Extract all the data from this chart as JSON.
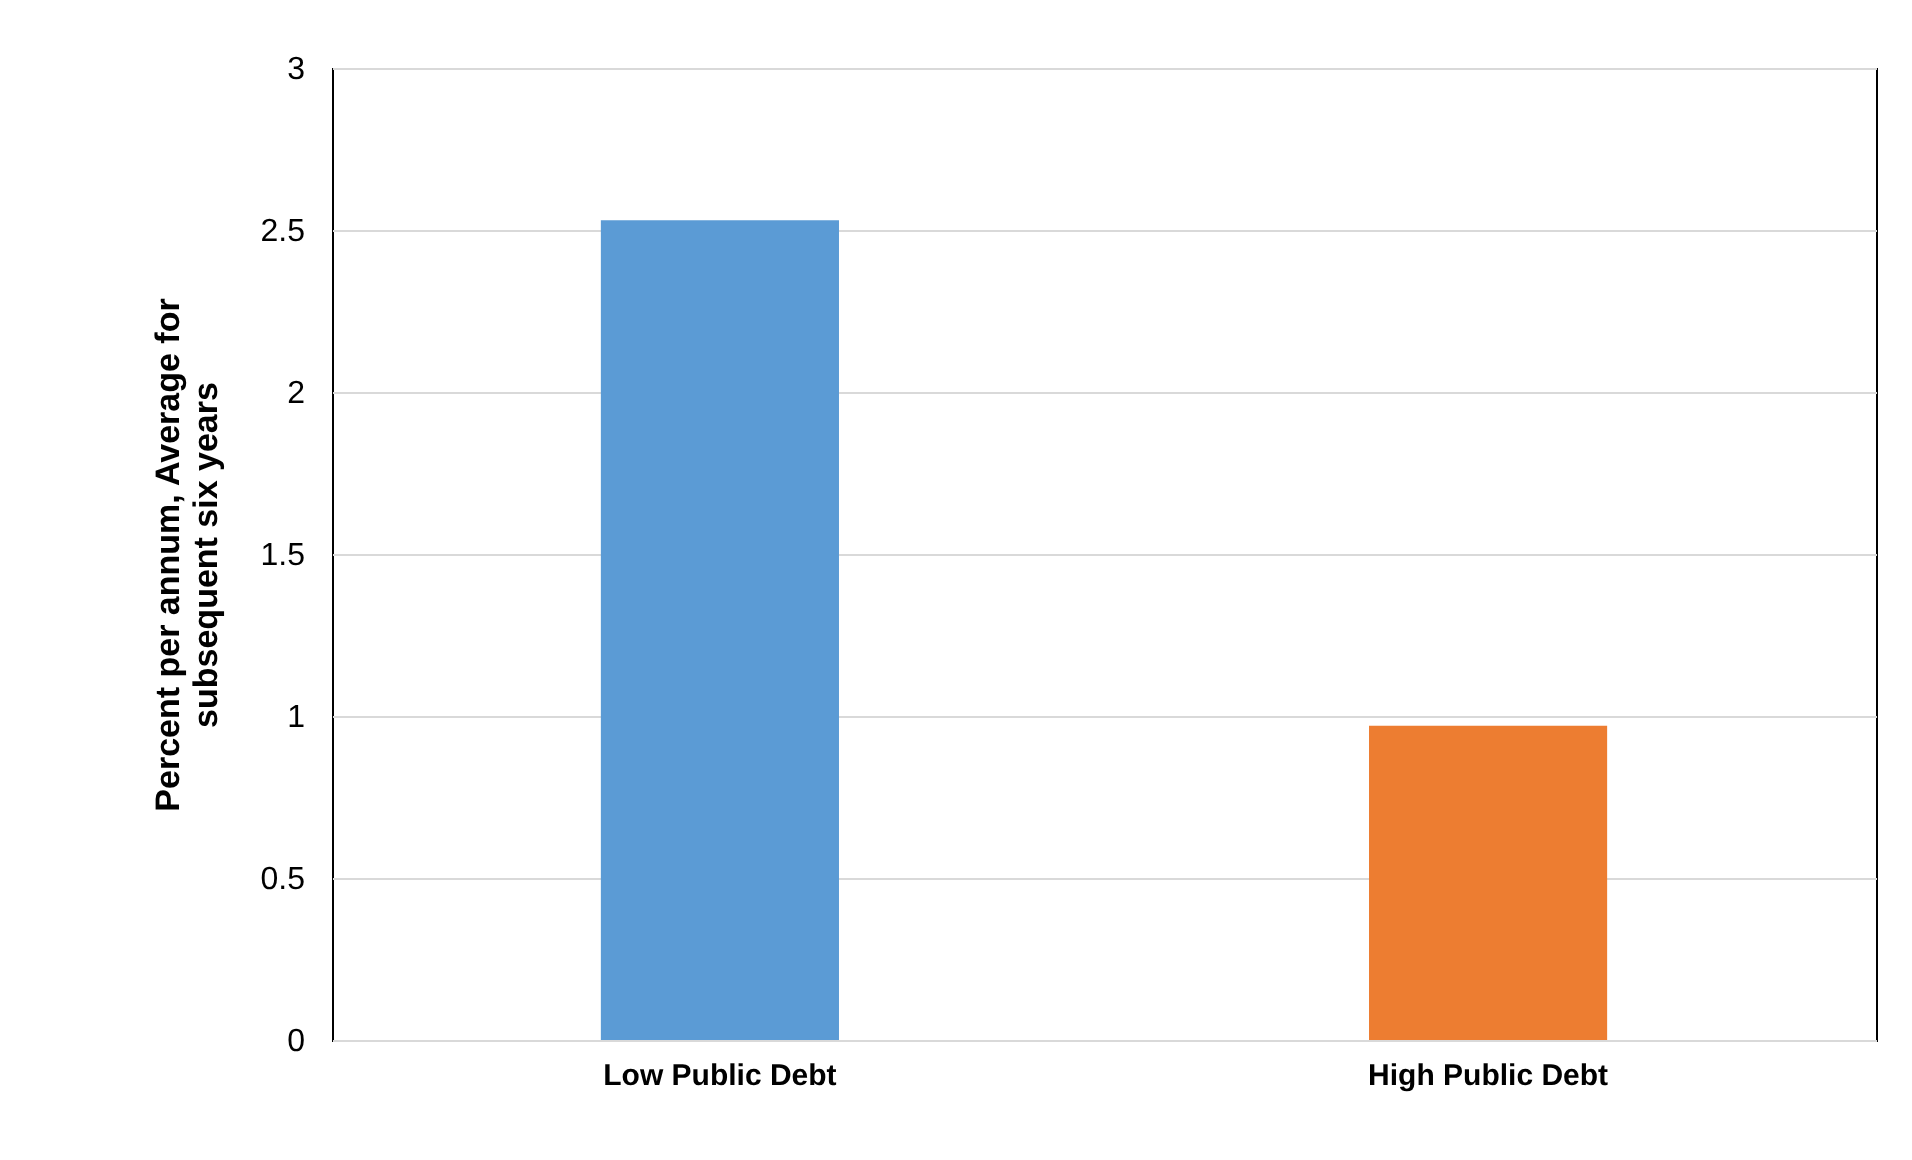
{
  "chart_data": {
    "type": "bar",
    "ylabel": "Percent per annum, Average for\nsubsequent six years",
    "categories": [
      "Low Public Debt",
      "High Public Debt"
    ],
    "values": [
      2.53,
      0.97
    ],
    "colors": [
      "#5b9bd5",
      "#ed7d31"
    ],
    "ylim": [
      0,
      3
    ],
    "yticks": [
      0,
      0.5,
      1,
      1.5,
      2,
      2.5,
      3
    ],
    "grid": "y",
    "legend": false
  }
}
